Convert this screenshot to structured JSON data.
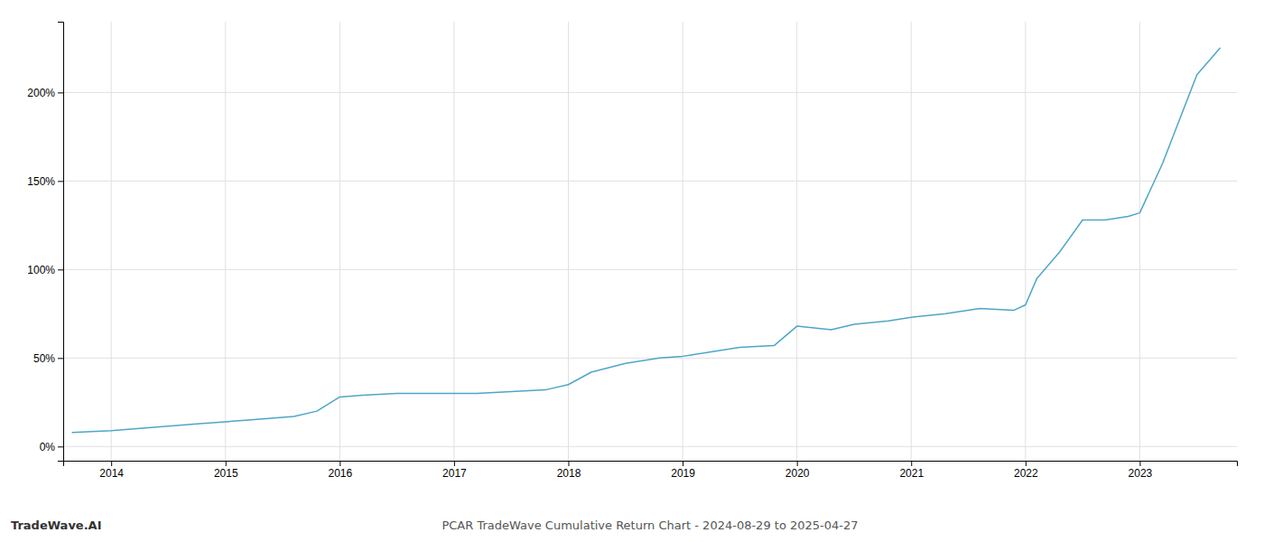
{
  "chart_data": {
    "type": "line",
    "title": "PCAR TradeWave Cumulative Return Chart - 2024-08-29 to 2025-04-27",
    "annotations": [
      "TradeWave.AI"
    ],
    "color": "#4da6c8",
    "x": [
      2013.66,
      2014.0,
      2014.2,
      2014.4,
      2014.6,
      2014.8,
      2015.0,
      2015.2,
      2015.4,
      2015.6,
      2015.8,
      2016.0,
      2016.2,
      2016.5,
      2016.7,
      2017.0,
      2017.2,
      2017.5,
      2017.8,
      2018.0,
      2018.2,
      2018.5,
      2018.8,
      2019.0,
      2019.2,
      2019.5,
      2019.8,
      2020.0,
      2020.3,
      2020.5,
      2020.8,
      2021.0,
      2021.3,
      2021.6,
      2021.9,
      2022.0,
      2022.1,
      2022.3,
      2022.5,
      2022.7,
      2022.9,
      2023.0,
      2023.2,
      2023.5,
      2023.7
    ],
    "values": [
      8,
      9,
      10,
      11,
      12,
      13,
      14,
      15,
      16,
      17,
      20,
      28,
      29,
      30,
      30,
      30,
      30,
      31,
      32,
      35,
      42,
      47,
      50,
      51,
      53,
      56,
      57,
      68,
      66,
      69,
      71,
      73,
      75,
      78,
      77,
      80,
      95,
      110,
      128,
      128,
      130,
      132,
      160,
      210,
      225
    ],
    "xlim": [
      2013.58,
      2023.85
    ],
    "xticks": [
      2014,
      2015,
      2016,
      2017,
      2018,
      2019,
      2020,
      2021,
      2022,
      2023
    ],
    "ylim": [
      -8,
      240
    ],
    "yticks": [
      {
        "value": 0,
        "label": "0%"
      },
      {
        "value": 50,
        "label": "50%"
      },
      {
        "value": 100,
        "label": "100%"
      },
      {
        "value": 150,
        "label": "150%"
      },
      {
        "value": 200,
        "label": "200%"
      }
    ],
    "grid": true
  }
}
